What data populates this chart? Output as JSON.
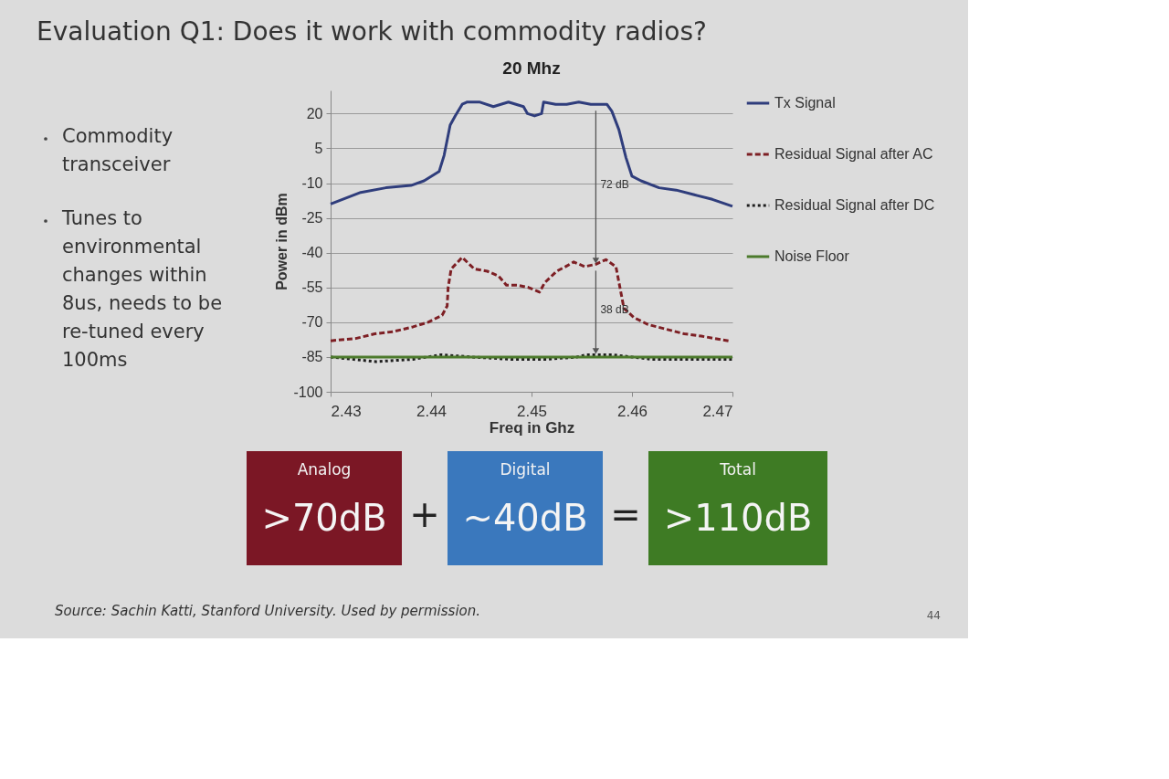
{
  "chart_data": [
    {
      "type": "other",
      "title": "Evaluation Q1: Does it work with commodity radios?",
      "annotations": [
        "Commodity transceiver",
        "Tunes to environmental changes within 8us, needs to be re-tuned every 100ms"
      ]
    },
    {
      "type": "line",
      "title": "20 Mhz",
      "xlabel": "Freq in Ghz",
      "ylabel": "Power in dBm",
      "xlim": [
        2.43,
        2.47
      ],
      "xticks": [
        2.43,
        2.44,
        2.45,
        2.46,
        2.47
      ],
      "ylim": [
        -100,
        30
      ],
      "yticks": [
        -100,
        -85,
        -70,
        -55,
        -40,
        -25,
        -10,
        5,
        20
      ],
      "grid": "y",
      "legend": "right",
      "series": [
        {
          "name": "Tx Signal",
          "color": "#2f3d7c",
          "line_style": "solid",
          "x": [
            2.43,
            2.433,
            2.4355,
            2.438,
            2.4393,
            2.4408,
            2.4413,
            2.4419,
            2.4424,
            2.4431,
            2.4436,
            2.4448,
            2.4462,
            2.4477,
            2.4492,
            2.4496,
            2.4503,
            2.451,
            2.4512,
            2.4524,
            2.4535,
            2.4547,
            2.4559,
            2.457,
            2.4575,
            2.458,
            2.4587,
            2.4594,
            2.46,
            2.4609,
            2.4627,
            2.4644,
            2.4662,
            2.468,
            2.47
          ],
          "values": [
            -19,
            -14,
            -12,
            -11,
            -9,
            -5,
            2,
            15,
            19,
            24,
            25,
            25,
            23,
            25,
            23,
            20,
            19,
            20,
            25,
            24,
            24,
            25,
            24,
            24,
            24,
            21,
            13,
            1,
            -7,
            -9,
            -12,
            -13,
            -15,
            -17,
            -20
          ]
        },
        {
          "name": "Residual Signal after AC",
          "color": "#7d1f24",
          "line_style": "dashed",
          "x": [
            2.43,
            2.4325,
            2.4344,
            2.4363,
            2.4382,
            2.4397,
            2.4411,
            2.4416,
            2.4417,
            2.442,
            2.4431,
            2.4443,
            2.4456,
            2.4467,
            2.4475,
            2.4486,
            2.4497,
            2.4508,
            2.4513,
            2.4525,
            2.4534,
            2.4542,
            2.4553,
            2.4564,
            2.4574,
            2.4584,
            2.4588,
            2.4592,
            2.4602,
            2.4616,
            2.4634,
            2.4652,
            2.4669,
            2.4696
          ],
          "values": [
            -78,
            -77,
            -75,
            -74,
            -72,
            -70,
            -67,
            -63,
            -55,
            -47,
            -42,
            -47,
            -48,
            -50,
            -54,
            -54,
            -55,
            -57,
            -53,
            -48,
            -46,
            -44,
            -46,
            -45,
            -43,
            -46,
            -55,
            -64,
            -68,
            -71,
            -73,
            -75,
            -76,
            -78
          ]
        },
        {
          "name": "Residual Signal after DC",
          "color": "#1e1e1e",
          "line_style": "dotted",
          "x": [
            2.43,
            2.4345,
            2.4382,
            2.441,
            2.444,
            2.448,
            2.4515,
            2.4545,
            2.4555,
            2.458,
            2.46,
            2.462,
            2.4655,
            2.47
          ],
          "values": [
            -85,
            -87,
            -86,
            -84,
            -85,
            -86,
            -86,
            -85,
            -84,
            -84,
            -85,
            -86,
            -86,
            -86
          ]
        },
        {
          "name": "Noise Floor",
          "color": "#4c7a2c",
          "line_style": "solid",
          "x": [
            2.43,
            2.44,
            2.45,
            2.46,
            2.47
          ],
          "values": [
            -85,
            -85,
            -85,
            -85,
            -85
          ]
        }
      ],
      "annotations": [
        "72 dB",
        "38 dB"
      ]
    },
    {
      "type": "other",
      "colors": [
        "#7b1725",
        "#3a78bd",
        "#3e7b24"
      ],
      "annotations": [
        "Analog",
        ">70dB",
        "+",
        "Digital",
        "~40dB",
        "=",
        "Total",
        ">110dB",
        "Source: Sachin Katti, Stanford University. Used by permission.",
        "44"
      ]
    }
  ]
}
